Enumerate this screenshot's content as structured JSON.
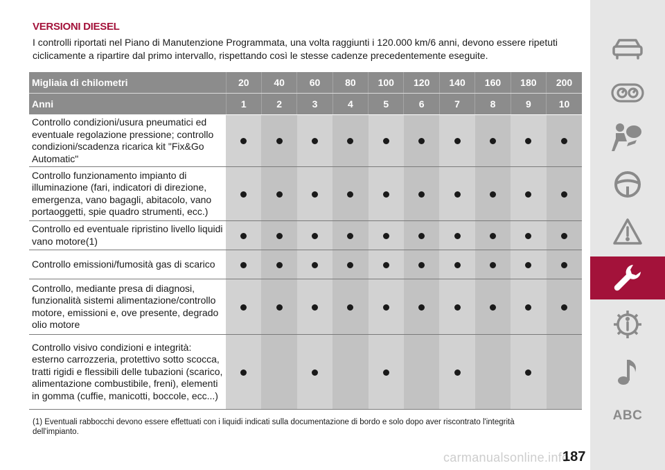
{
  "section_title": "VERSIONI DIESEL",
  "intro": "I controlli riportati nel Piano di Manutenzione Programmata, una volta raggiunti i 120.000 km/6 anni, devono essere ripetuti ciclicamente a ripartire dal primo intervallo, rispettando così le stesse cadenze precedentemente eseguite.",
  "table": {
    "header_km_label": "Migliaia di chilometri",
    "km": [
      "20",
      "40",
      "60",
      "80",
      "100",
      "120",
      "140",
      "160",
      "180",
      "200"
    ],
    "header_years_label": "Anni",
    "years": [
      "1",
      "2",
      "3",
      "4",
      "5",
      "6",
      "7",
      "8",
      "9",
      "10"
    ],
    "rows": [
      {
        "label": "Controllo condizioni/usura pneumatici ed eventuale regolazione pressione; controllo condizioni/scadenza ricarica kit \"Fix&Go Automatic\"",
        "marks": [
          true,
          true,
          true,
          true,
          true,
          true,
          true,
          true,
          true,
          true
        ]
      },
      {
        "label": "Controllo funzionamento impianto di illuminazione (fari, indicatori di direzione, emergenza, vano bagagli, abitacolo, vano portaoggetti, spie quadro strumenti, ecc.)",
        "marks": [
          true,
          true,
          true,
          true,
          true,
          true,
          true,
          true,
          true,
          true
        ]
      },
      {
        "label": "Controllo ed eventuale ripristino livello liquidi vano motore(1)",
        "marks": [
          true,
          true,
          true,
          true,
          true,
          true,
          true,
          true,
          true,
          true
        ]
      },
      {
        "label": "Controllo emissioni/fumosità gas di scarico",
        "marks": [
          true,
          true,
          true,
          true,
          true,
          true,
          true,
          true,
          true,
          true
        ]
      },
      {
        "label": "Controllo, mediante presa di diagnosi, funzionalità sistemi alimentazione/controllo motore, emissioni e, ove presente, degrado olio motore",
        "marks": [
          true,
          true,
          true,
          true,
          true,
          true,
          true,
          true,
          true,
          true
        ]
      },
      {
        "label": "Controllo visivo condizioni e integrità: esterno carrozzeria, protettivo sotto scocca, tratti rigidi e flessibili delle tubazioni (scarico, alimentazione combustibile, freni), elementi in gomma (cuffie, manicotti, boccole, ecc...)",
        "marks": [
          true,
          false,
          true,
          false,
          true,
          false,
          true,
          false,
          true,
          false
        ]
      }
    ]
  },
  "footnote": {
    "marker": "(1)",
    "text": "Eventuali rabbocchi devono essere effettuati con i liquidi indicati sulla documentazione di bordo e solo dopo aver riscontrato l'integrità dell'impianto."
  },
  "sidebar": {
    "items": [
      "car-icon",
      "gauge-cluster-icon",
      "airbag-passenger-icon",
      "steering-wheel-icon",
      "warning-triangle-icon",
      "wrench-icon",
      "gear-info-icon",
      "music-note-icon",
      "abc-index"
    ],
    "active_index": 5,
    "abc_label": "ABC"
  },
  "page_number": "187",
  "watermark": "carmanualsonline.info",
  "colors": {
    "accent": "#a3123a",
    "header_bg": "#8c8c8c",
    "cell_even": "#d2d2d2",
    "cell_odd": "#c2c2c2",
    "sidebar_bg": "#e6e6e6",
    "icon": "#8a8a8a"
  }
}
